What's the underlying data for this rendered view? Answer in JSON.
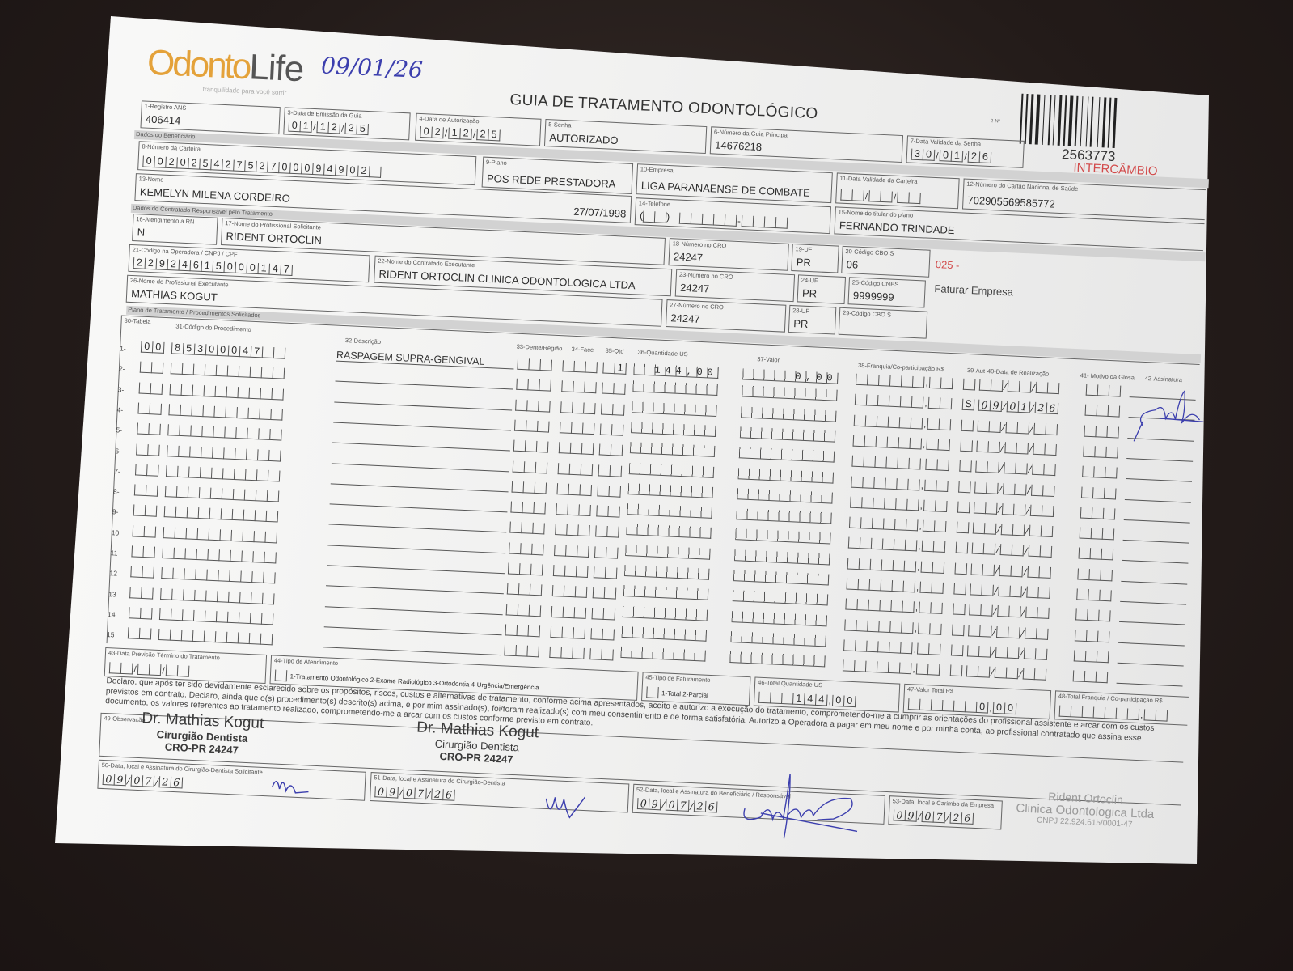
{
  "colors": {
    "logo_orange": "#e4a23a",
    "ink_blue": "#3c3fae",
    "red_text": "#d24a4a",
    "paper": "#f0f0ef",
    "background": "#251d1b"
  },
  "header": {
    "logo_part1": "Odonto",
    "logo_part2": "Life",
    "logo_tagline": "tranquilidade para você sorrir",
    "handwritten_date": "09/01/26",
    "title": "GUIA DE TRATAMENTO ODONTOLÓGICO",
    "guide_number_label": "2-Nº",
    "guide_number": "2563773",
    "intercambio": "INTERCÂMBIO"
  },
  "fields": {
    "registro_ans": {
      "label": "1-Registro ANS",
      "value": "406414"
    },
    "data_emissao": {
      "label": "3-Data de Emissão da Guia",
      "value": "01/12/25"
    },
    "data_autorizacao": {
      "label": "4-Data de Autorização",
      "value": "02/12/25"
    },
    "senha": {
      "label": "5-Senha",
      "value": "AUTORIZADO"
    },
    "guia_principal": {
      "label": "6-Número da Guia Principal",
      "value": "14676218"
    },
    "validade_senha": {
      "label": "7-Data Validade da Senha",
      "value": "30/01/26"
    },
    "carteira": {
      "label": "8-Número da Carteira",
      "value": "00202542752700094902"
    },
    "plano": {
      "label": "9-Plano",
      "value": "POS REDE PRESTADORA"
    },
    "empresa": {
      "label": "10-Empresa",
      "value": "LIGA PARANAENSE DE COMBATE"
    },
    "validade_carteira": {
      "label": "11-Data Validade da Carteira",
      "value": ""
    },
    "cns": {
      "label": "12-Número do Cartão Nacional de Saúde",
      "value": "702905569585772"
    },
    "nome": {
      "label": "13-Nome",
      "value": "KEMELYN MILENA CORDEIRO",
      "birth_date": "27/07/1998"
    },
    "telefone": {
      "label": "14-Telefone",
      "value": ""
    },
    "titular": {
      "label": "15-Nome do titular do plano",
      "value": "FERNANDO TRINDADE"
    },
    "atendimento_rn": {
      "label": "16-Atendimento a RN",
      "value": "N"
    },
    "prof_solicitante": {
      "label": "17-Nome do Profissional Solicitante",
      "value": "RIDENT ORTOCLIN"
    },
    "cro_18": {
      "label": "18-Número no CRO",
      "value": "24247"
    },
    "uf_19": {
      "label": "19-UF",
      "value": "PR"
    },
    "cbo_20": {
      "label": "20-Código CBO S",
      "value": "06"
    },
    "codigo_operadora": {
      "label": "21-Código na Operadora / CNPJ / CPF",
      "value": "22924615000147"
    },
    "contratado_executante": {
      "label": "22-Nome do Contratado Executante",
      "value": "RIDENT ORTOCLIN CLINICA ODONTOLOGICA LTDA"
    },
    "cro_23": {
      "label": "23-Número no CRO",
      "value": "24247"
    },
    "uf_24": {
      "label": "24-UF",
      "value": "PR"
    },
    "cnes_25": {
      "label": "25-Código CNES",
      "value": "9999999"
    },
    "prof_executante": {
      "label": "26-Nome do Profissional Executante",
      "value": "MATHIAS KOGUT"
    },
    "cro_27": {
      "label": "27-Número no CRO",
      "value": "24247"
    },
    "uf_28": {
      "label": "28-UF",
      "value": "PR"
    },
    "cbo_29": {
      "label": "29-Código CBO S",
      "value": ""
    }
  },
  "notes": {
    "code_025": "025 -",
    "faturar": "Faturar Empresa"
  },
  "sections": {
    "beneficiario": "Dados do Beneficiário",
    "contratado": "Dados do Contratado Responsável pelo Tratamento",
    "plano": "Plano de Tratamento / Procedimentos Solicitados"
  },
  "procedures": {
    "headers": {
      "tabela": "30-Tabela",
      "codigo": "31-Código do Procedimento",
      "descricao": "32-Descrição",
      "dente": "33-Dente/Região",
      "face": "34-Face",
      "qtd": "35-Qtd",
      "us": "36-Quantidade US",
      "valor": "37-Valor",
      "franquia": "38-Franquia/Co-participação R$",
      "aut": "39-Aut",
      "data": "40-Data de Realização",
      "glosa": "41- Motivo da Glosa",
      "assinatura": "42-Assinatura"
    },
    "rows": [
      {
        "num": "1-",
        "tabela": "00",
        "codigo": "85300047",
        "descricao": "RASPAGEM SUPRA-GENGIVAL",
        "dente": "",
        "face": "",
        "qtd": "1",
        "us": "144,00",
        "valor": "0,00",
        "franquia": "",
        "aut": "",
        "data": "",
        "glosa": ""
      },
      {
        "num": "2-",
        "tabela": "",
        "codigo": "",
        "descricao": "",
        "dente": "",
        "face": "",
        "qtd": "",
        "us": "",
        "valor": "",
        "franquia": "",
        "aut": "S",
        "data": "09/01/26",
        "glosa": ""
      },
      {
        "num": "3-"
      },
      {
        "num": "4-"
      },
      {
        "num": "5-"
      },
      {
        "num": "6-"
      },
      {
        "num": "7-"
      },
      {
        "num": "8-"
      },
      {
        "num": "9-"
      },
      {
        "num": "10"
      },
      {
        "num": "11"
      },
      {
        "num": "12"
      },
      {
        "num": "13"
      },
      {
        "num": "14"
      },
      {
        "num": "15"
      }
    ]
  },
  "totals": {
    "previsao_termino": {
      "label": "43-Data Previsão Término do Tratamento",
      "value": ""
    },
    "tipo_atendimento": {
      "label": "44-Tipo de Atendimento",
      "options": "1-Tratamento Odontológico  2-Exame Radiológico  3-Ortodontia  4-Urgência/Emergência",
      "value": ""
    },
    "tipo_faturamento": {
      "label": "45-Tipo de Faturamento",
      "options": "1-Total  2-Parcial",
      "value": ""
    },
    "total_us": {
      "label": "46-Total Quantidade US",
      "value": "144,00"
    },
    "valor_total": {
      "label": "47-Valor Total R$",
      "value": "0,00"
    },
    "total_franquia": {
      "label": "48-Total Franquia / Co-participação R$",
      "value": ""
    }
  },
  "declaration": "Declaro, que após ter sido devidamente esclarecido sobre os propósitos, riscos, custos e alternativas de tratamento, conforme acima apresentados, aceito e autorizo a execução do tratamento, comprometendo-me a cumprir as orientações do profissional assistente e arcar com os custos previstos em contrato. Declaro, ainda que o(s) procedimento(s) descrito(s) acima, e por mim assinado(s), foi/foram realizado(s) com meu consentimento e de forma satisfatória. Autorizo a Operadora a pagar em meu nome e por minha conta, ao profissional contratado que assina esse documento, os valores referentes ao tratamento realizado, comprometendo-me a arcar com os custos conforme previsto em contrato.",
  "observacao": {
    "label": "49-Observação",
    "stamp1": {
      "name": "Dr. Mathias Kogut",
      "role": "Cirurgião Dentista",
      "cro": "CRO-PR 24247"
    },
    "stamp2": {
      "name": "Dr. Mathias Kogut",
      "role": "Cirurgião Dentista",
      "cro": "CRO-PR 24247"
    }
  },
  "signatures": {
    "s50": {
      "label": "50-Data, local e Assinatura do Cirurgião-Dentista Solicitante",
      "date": "09/07/26"
    },
    "s51": {
      "label": "51-Data, local e Assinatura do Cirurgião-Dentista",
      "date": "09/07/26"
    },
    "s52": {
      "label": "52-Data, local e Assinatura do Beneficiário / Responsável",
      "date": "09/07/26"
    },
    "s53": {
      "label": "53-Data, local e Carimbo da Empresa",
      "date": "09/07/26"
    },
    "company_stamp": {
      "line1": "Rident Ortoclin",
      "line2": "Clinica Odontologica Ltda",
      "line3": "CNPJ 22.924.615/0001-47"
    }
  }
}
